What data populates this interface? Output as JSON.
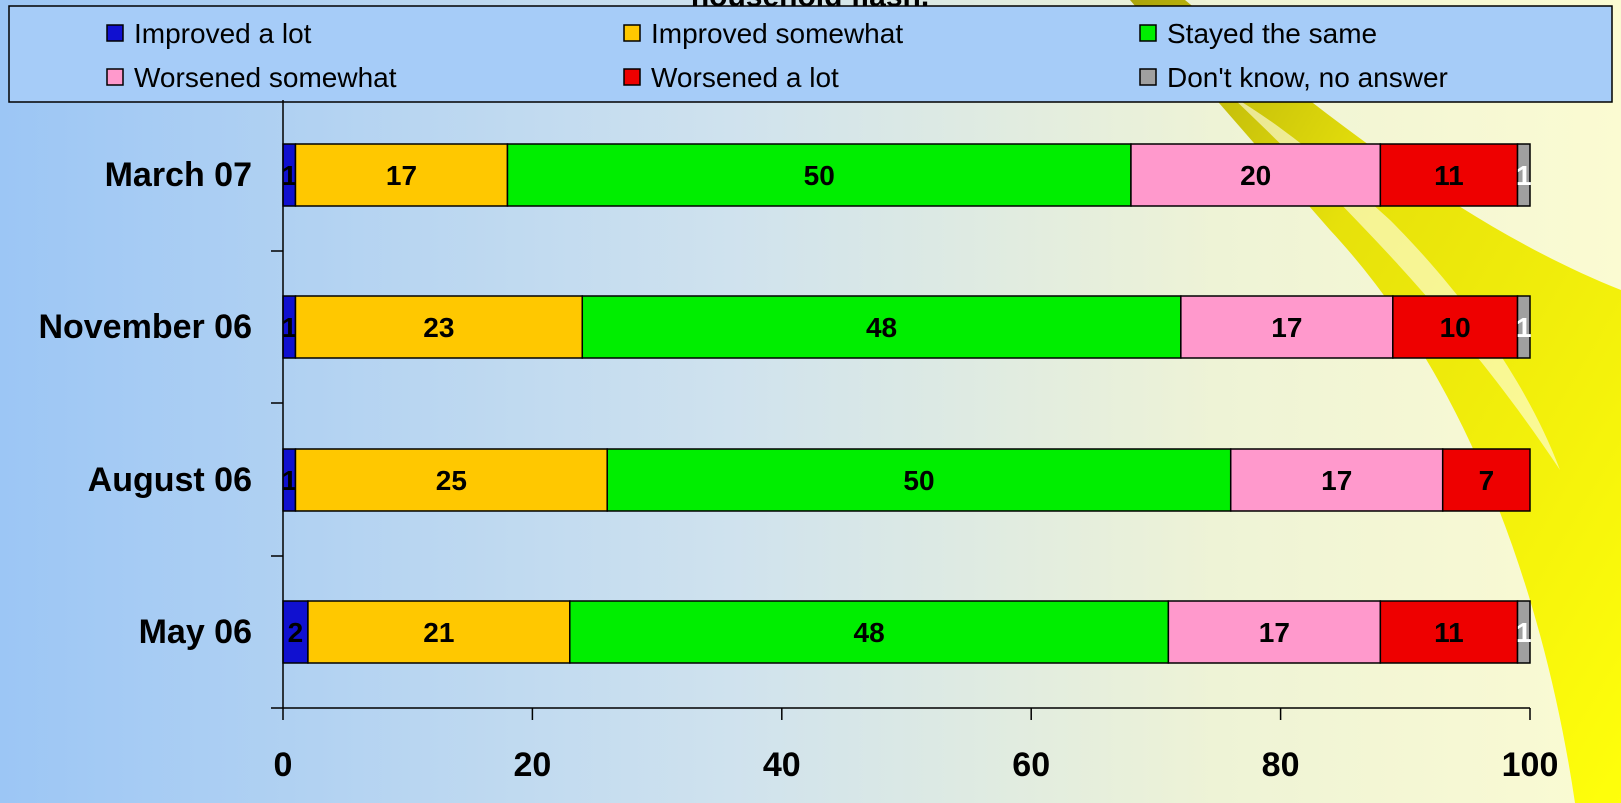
{
  "chart_data": {
    "type": "bar",
    "orientation": "horizontal",
    "stacked": true,
    "title": "household fiash.",
    "categories": [
      "March 07",
      "November 06",
      "August 06",
      "May 06"
    ],
    "series": [
      {
        "name": "Improved a lot",
        "color": "#1010d0",
        "values": [
          1,
          1,
          1,
          2
        ]
      },
      {
        "name": "Improved somewhat",
        "color": "#ffc800",
        "values": [
          17,
          23,
          25,
          21
        ]
      },
      {
        "name": "Stayed the same",
        "color": "#00ee00",
        "values": [
          50,
          48,
          50,
          48
        ]
      },
      {
        "name": "Worsened somewhat",
        "color": "#ff99cc",
        "values": [
          20,
          17,
          17,
          17
        ]
      },
      {
        "name": "Worsened a lot",
        "color": "#ee0000",
        "values": [
          11,
          10,
          7,
          11
        ]
      },
      {
        "name": "Don't know, no answer",
        "color": "#a0a0a0",
        "values": [
          1,
          1,
          0,
          1
        ]
      }
    ],
    "xlim": [
      0,
      100
    ],
    "xticks": [
      0,
      20,
      40,
      60,
      80,
      100
    ],
    "legend": "top",
    "grid": false
  }
}
